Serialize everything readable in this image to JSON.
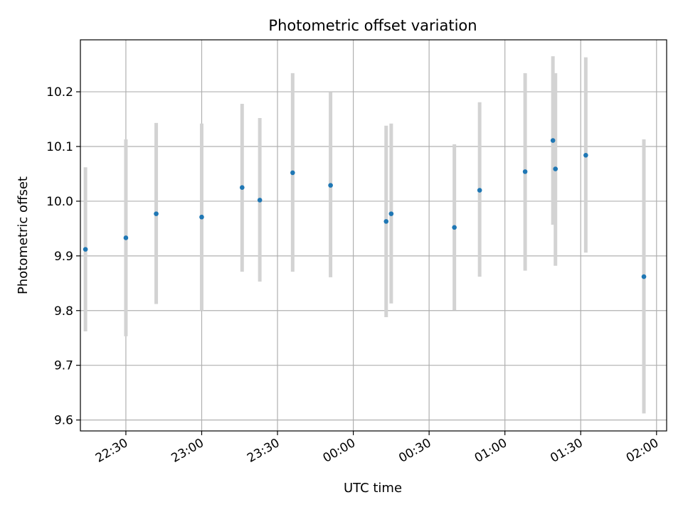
{
  "chart_data": {
    "type": "scatter",
    "title": "Photometric offset variation",
    "xlabel": "UTC time",
    "ylabel": "Photometric offset",
    "xlim": [
      "22:12",
      "02:04"
    ],
    "ylim": [
      9.58,
      10.295
    ],
    "grid": true,
    "x_ticks": [
      "22:30",
      "23:00",
      "23:30",
      "00:00",
      "00:30",
      "01:00",
      "01:30",
      "02:00"
    ],
    "y_ticks": [
      "9.6",
      "9.7",
      "9.8",
      "9.9",
      "10.0",
      "10.1",
      "10.2"
    ],
    "marker_color": "#1f77b4",
    "errorbar_color": "#d3d3d3",
    "points": [
      {
        "time": "22:14",
        "value": 9.912,
        "low": 9.762,
        "high": 10.062
      },
      {
        "time": "22:30",
        "value": 9.933,
        "low": 9.753,
        "high": 10.113
      },
      {
        "time": "22:42",
        "value": 9.977,
        "low": 9.812,
        "high": 10.143
      },
      {
        "time": "23:00",
        "value": 9.971,
        "low": 9.8,
        "high": 10.142
      },
      {
        "time": "23:16",
        "value": 10.025,
        "low": 9.871,
        "high": 10.178
      },
      {
        "time": "23:23",
        "value": 10.002,
        "low": 9.853,
        "high": 10.152
      },
      {
        "time": "23:36",
        "value": 10.052,
        "low": 9.871,
        "high": 10.234
      },
      {
        "time": "23:51",
        "value": 10.029,
        "low": 9.861,
        "high": 10.199
      },
      {
        "time": "00:13",
        "value": 9.963,
        "low": 9.788,
        "high": 10.138
      },
      {
        "time": "00:15",
        "value": 9.977,
        "low": 9.813,
        "high": 10.142
      },
      {
        "time": "00:40",
        "value": 9.952,
        "low": 9.801,
        "high": 10.104
      },
      {
        "time": "00:50",
        "value": 10.02,
        "low": 9.862,
        "high": 10.181
      },
      {
        "time": "01:08",
        "value": 10.054,
        "low": 9.873,
        "high": 10.234
      },
      {
        "time": "01:19",
        "value": 10.111,
        "low": 9.957,
        "high": 10.265
      },
      {
        "time": "01:20",
        "value": 10.059,
        "low": 9.882,
        "high": 10.234
      },
      {
        "time": "01:32",
        "value": 10.084,
        "low": 9.906,
        "high": 10.263
      },
      {
        "time": "01:55",
        "value": 9.862,
        "low": 9.612,
        "high": 10.113
      }
    ]
  }
}
